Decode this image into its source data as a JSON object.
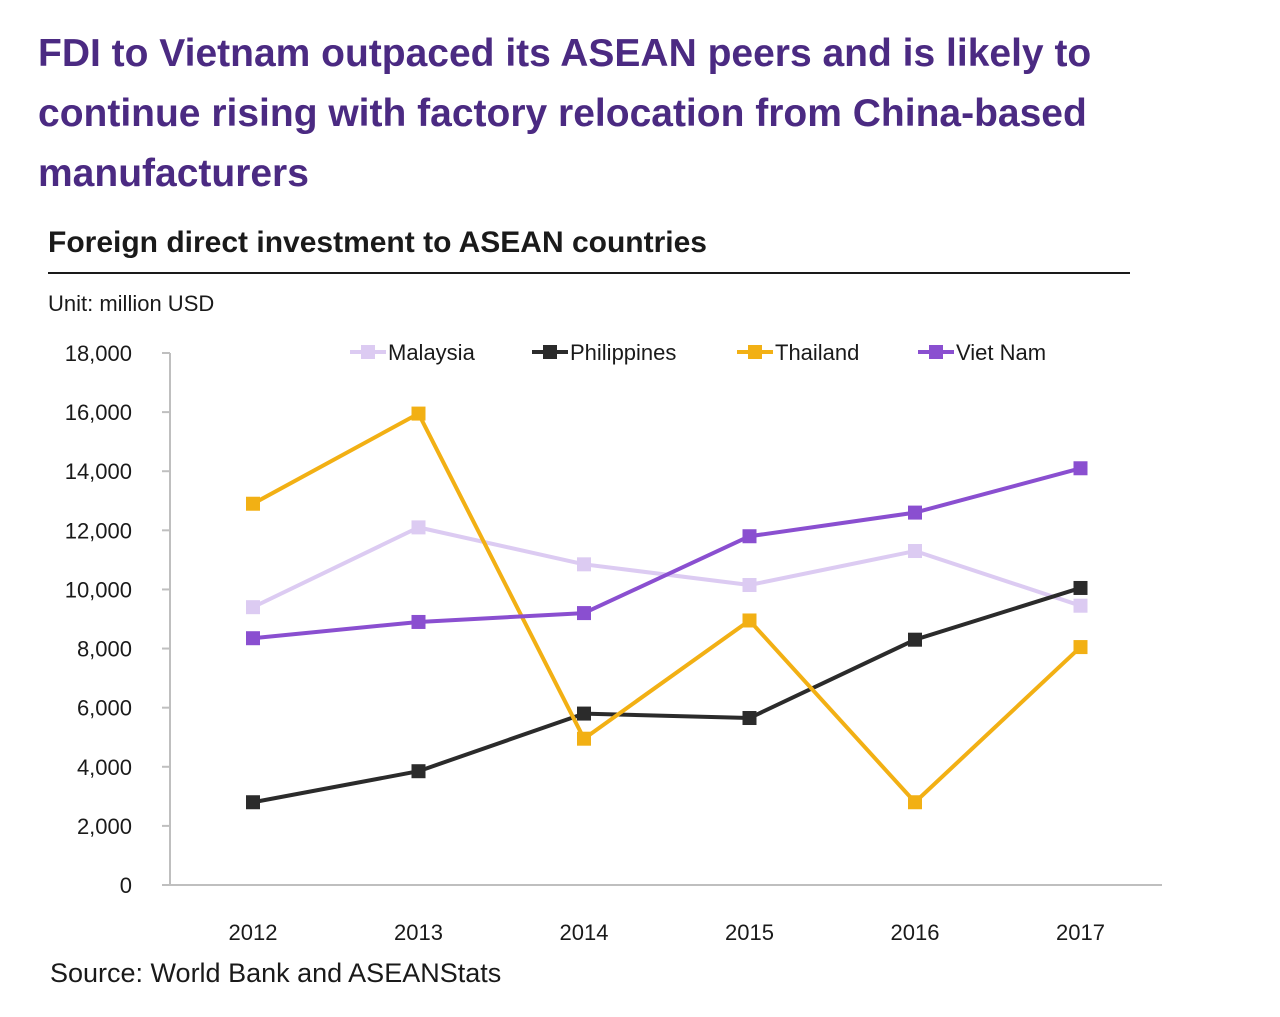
{
  "headline": "FDI to Vietnam outpaced its ASEAN peers and is likely to continue rising with factory relocation from China-based manufacturers",
  "chart_data": {
    "type": "line",
    "title": "Foreign direct investment to ASEAN countries",
    "unit": "Unit: million USD",
    "x": [
      "2012",
      "2013",
      "2014",
      "2015",
      "2016",
      "2017"
    ],
    "ylim": [
      0,
      18000
    ],
    "yticks": [
      0,
      2000,
      4000,
      6000,
      8000,
      10000,
      12000,
      14000,
      16000,
      18000
    ],
    "ytick_labels": [
      "0",
      "2,000",
      "4,000",
      "6,000",
      "8,000",
      "10,000",
      "12,000",
      "14,000",
      "16,000",
      "18,000"
    ],
    "grid": false,
    "legend_position": "top",
    "series": [
      {
        "name": "Malaysia",
        "color": "#dccbf2",
        "values": [
          9400,
          12100,
          10850,
          10150,
          11300,
          9450
        ]
      },
      {
        "name": "Philippines",
        "color": "#2b2b2b",
        "values": [
          2800,
          3850,
          5800,
          5650,
          8300,
          10050
        ]
      },
      {
        "name": "Thailand",
        "color": "#f2b014",
        "values": [
          12900,
          15950,
          4950,
          8950,
          2800,
          8050
        ]
      },
      {
        "name": "Viet Nam",
        "color": "#8a4fd0",
        "values": [
          8350,
          8900,
          9200,
          11800,
          12600,
          14100
        ]
      }
    ]
  },
  "source": "Source: World Bank and ASEANStats"
}
